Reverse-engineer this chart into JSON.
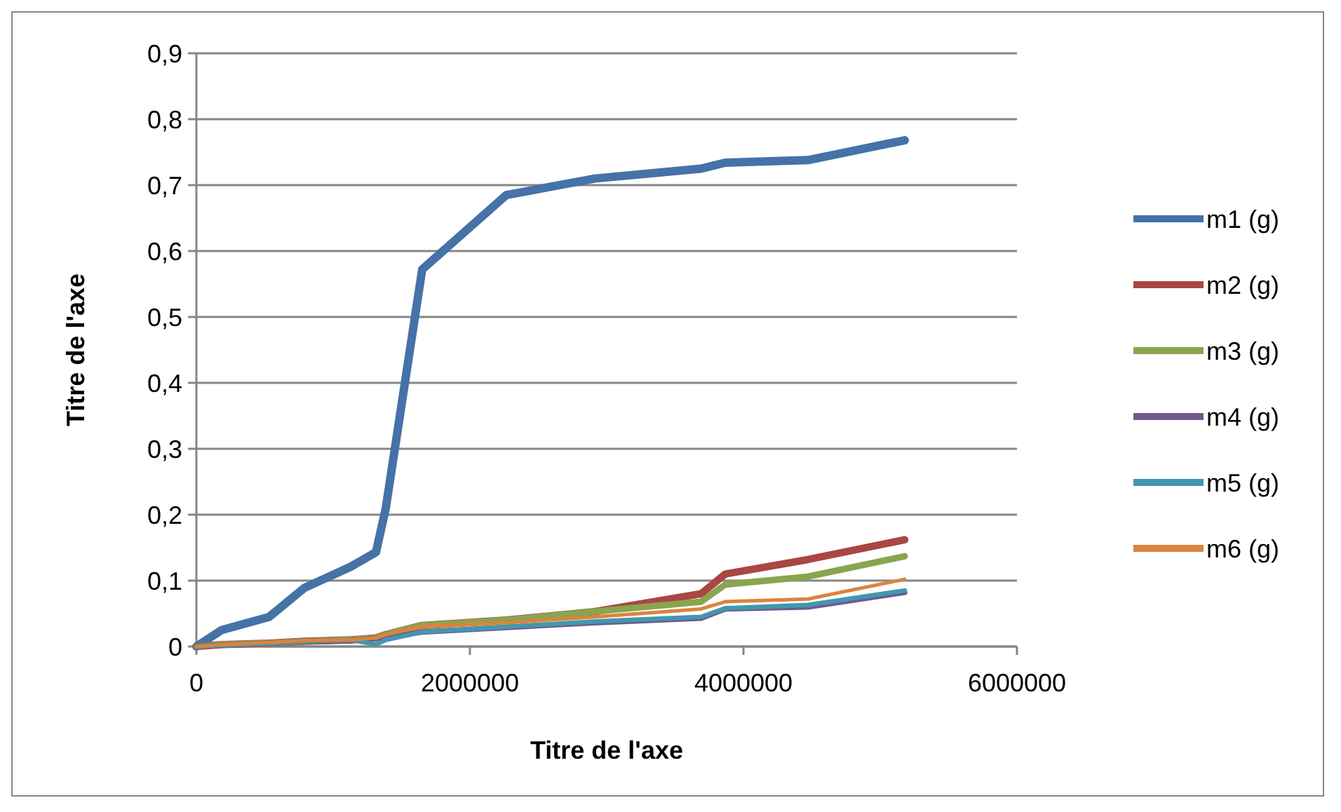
{
  "chart_data": {
    "type": "line",
    "xlabel": "Titre de l'axe",
    "ylabel": "Titre de l'axe",
    "x": [
      0,
      185000,
      533000,
      790000,
      1128000,
      1313000,
      1385000,
      1651000,
      2267000,
      2913000,
      3690000,
      3867000,
      4472000,
      5179000
    ],
    "series": [
      {
        "name": "m1 (g)",
        "color": "#4572a7",
        "values": [
          0,
          0.025,
          0.045,
          0.089,
          0.121,
          0.143,
          0.21,
          0.572,
          0.685,
          0.71,
          0.725,
          0.734,
          0.738,
          0.768
        ]
      },
      {
        "name": "m2 (g)",
        "color": "#aa4643",
        "values": [
          0,
          0.003,
          0.005,
          0.008,
          0.01,
          0.013,
          0.018,
          0.032,
          0.04,
          0.053,
          0.08,
          0.11,
          0.132,
          0.162
        ]
      },
      {
        "name": "m3 (g)",
        "color": "#89a54e",
        "values": [
          0,
          0.003,
          0.005,
          0.008,
          0.01,
          0.013,
          0.018,
          0.032,
          0.04,
          0.053,
          0.068,
          0.094,
          0.106,
          0.137
        ]
      },
      {
        "name": "m4 (g)",
        "color": "#71588f",
        "values": [
          0,
          0.002,
          0.005,
          0.008,
          0.009,
          0.012,
          0.015,
          0.022,
          0.029,
          0.036,
          0.043,
          0.057,
          0.06,
          0.082
        ]
      },
      {
        "name": "m5 (g)",
        "color": "#4198af",
        "values": [
          0,
          0.002,
          0.005,
          0.008,
          0.01,
          0.003,
          0.01,
          0.022,
          0.03,
          0.038,
          0.045,
          0.058,
          0.063,
          0.085
        ]
      },
      {
        "name": "m6 (g)",
        "color": "#db843d",
        "values": [
          0,
          0.003,
          0.006,
          0.009,
          0.01,
          0.013,
          0.018,
          0.03,
          0.036,
          0.045,
          0.057,
          0.068,
          0.072,
          0.102
        ]
      }
    ],
    "xlim": [
      0,
      6000000
    ],
    "xticks": [
      0,
      2000000,
      4000000,
      6000000
    ],
    "ylim": [
      0,
      0.9
    ],
    "yticks": [
      0,
      {
        "value": 0.1,
        "label": "0,1"
      },
      {
        "value": 0.2,
        "label": "0,2"
      },
      {
        "value": 0.3,
        "label": "0,3"
      },
      {
        "value": 0.4,
        "label": "0,4"
      },
      {
        "value": 0.5,
        "label": "0,5"
      },
      {
        "value": 0.6,
        "label": "0,6"
      },
      {
        "value": 0.7,
        "label": "0,7"
      },
      {
        "value": 0.8,
        "label": "0,8"
      },
      {
        "value": 0.9,
        "label": "0,9"
      }
    ],
    "grid": "y",
    "legend": "right",
    "marker": "none",
    "line_style": "solid"
  }
}
